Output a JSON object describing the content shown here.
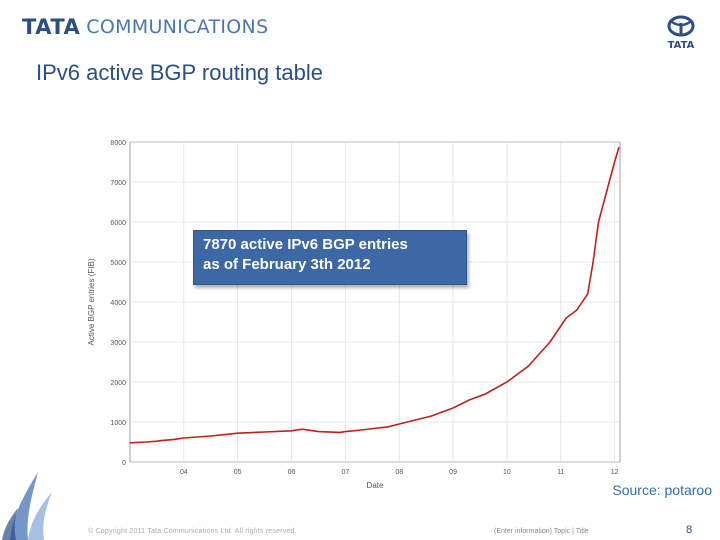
{
  "header": {
    "logo_brand": "TATA",
    "logo_word": "COMMUNICATIONS",
    "emblem_text": "TATA"
  },
  "slide": {
    "title": "IPv6 active BGP routing table",
    "callout_line1": "7870 active IPv6 BGP entries",
    "callout_line2": "as of February 3th 2012",
    "source": "Source: potaroo"
  },
  "footer": {
    "copyright": "© Copyright 2011 Tata Communications Ltd. All rights reserved.",
    "topic": "(Enter information) Topic | Title",
    "page": "8"
  },
  "colors": {
    "brand": "#2a4f86",
    "series": "#c0201c",
    "callout": "#3c68a5"
  },
  "chart_data": {
    "type": "line",
    "xlabel": "Date",
    "ylabel": "Active BGP entries (FIB)",
    "x_ticks": [
      "04",
      "05",
      "06",
      "07",
      "08",
      "09",
      "10",
      "11",
      "12"
    ],
    "y_ticks": [
      "0",
      "1000",
      "2000",
      "3000",
      "4000",
      "5000",
      "6000",
      "7000",
      "8000"
    ],
    "xlim": [
      2003.0,
      2012.1
    ],
    "ylim": [
      0,
      8000
    ],
    "grid": true,
    "series": [
      {
        "x": [
          2003.0,
          2003.3,
          2003.5,
          2003.6,
          2003.8,
          2004.0,
          2004.5,
          2005.0,
          2005.5,
          2006.0,
          2006.2,
          2006.5,
          2006.9,
          2007.0,
          2007.3,
          2007.6,
          2007.8,
          2008.0,
          2008.3,
          2008.6,
          2009.0,
          2009.3,
          2009.6,
          2010.0,
          2010.2,
          2010.4,
          2010.6,
          2010.8,
          2011.0,
          2011.1,
          2011.3,
          2011.5,
          2011.6,
          2011.7,
          2011.9,
          2012.0,
          2012.08
        ],
        "y": [
          480,
          500,
          520,
          540,
          560,
          600,
          650,
          720,
          750,
          780,
          820,
          760,
          740,
          760,
          800,
          850,
          880,
          950,
          1050,
          1150,
          1350,
          1550,
          1700,
          2000,
          2200,
          2400,
          2700,
          3000,
          3400,
          3600,
          3800,
          4200,
          5000,
          6000,
          7000,
          7500,
          7870
        ]
      }
    ]
  }
}
